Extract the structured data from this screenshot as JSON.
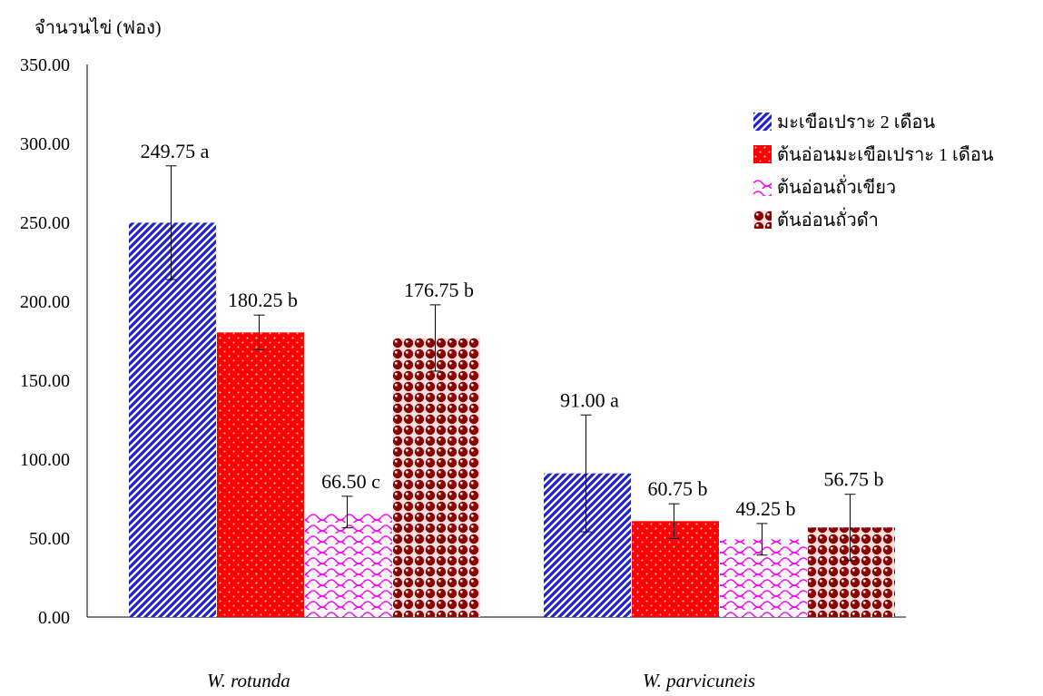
{
  "chart_data": {
    "type": "bar",
    "ylabel": "จำนวนไข่ (ฟอง)",
    "ylim": [
      0,
      350
    ],
    "yticks": [
      "0.00",
      "50.00",
      "100.00",
      "150.00",
      "200.00",
      "250.00",
      "300.00",
      "350.00"
    ],
    "categories": [
      "W. rotunda",
      "W. parvicuneis"
    ],
    "series": [
      {
        "name": "มะเขือเปราะ 2 เดือน",
        "values": [
          249.75,
          91.0
        ],
        "errors": [
          36,
          37
        ],
        "labels": [
          "249.75 a",
          "91.00 a"
        ],
        "pattern": "diagonal-stripes",
        "color": "#1f1fd6"
      },
      {
        "name": "ต้นอ่อนมะเขือเปราะ 1 เดือน",
        "values": [
          180.25,
          60.75
        ],
        "errors": [
          11,
          11
        ],
        "labels": [
          "180.25 b",
          "60.75 b"
        ],
        "pattern": "dots",
        "color": "#ff0000"
      },
      {
        "name": "ต้นอ่อนถั่วเขียว",
        "values": [
          66.5,
          49.25
        ],
        "errors": [
          10,
          10
        ],
        "labels": [
          "66.50 c",
          "49.25 b"
        ],
        "pattern": "scallops",
        "color": "#ff00ff"
      },
      {
        "name": "ต้นอ่อนถั่วดำ",
        "values": [
          176.75,
          56.75
        ],
        "errors": [
          21,
          21
        ],
        "labels": [
          "176.75 b",
          "56.75 b"
        ],
        "pattern": "spheres",
        "color": "#8b0000"
      }
    ],
    "legend_position": "top-right",
    "grid": false
  }
}
